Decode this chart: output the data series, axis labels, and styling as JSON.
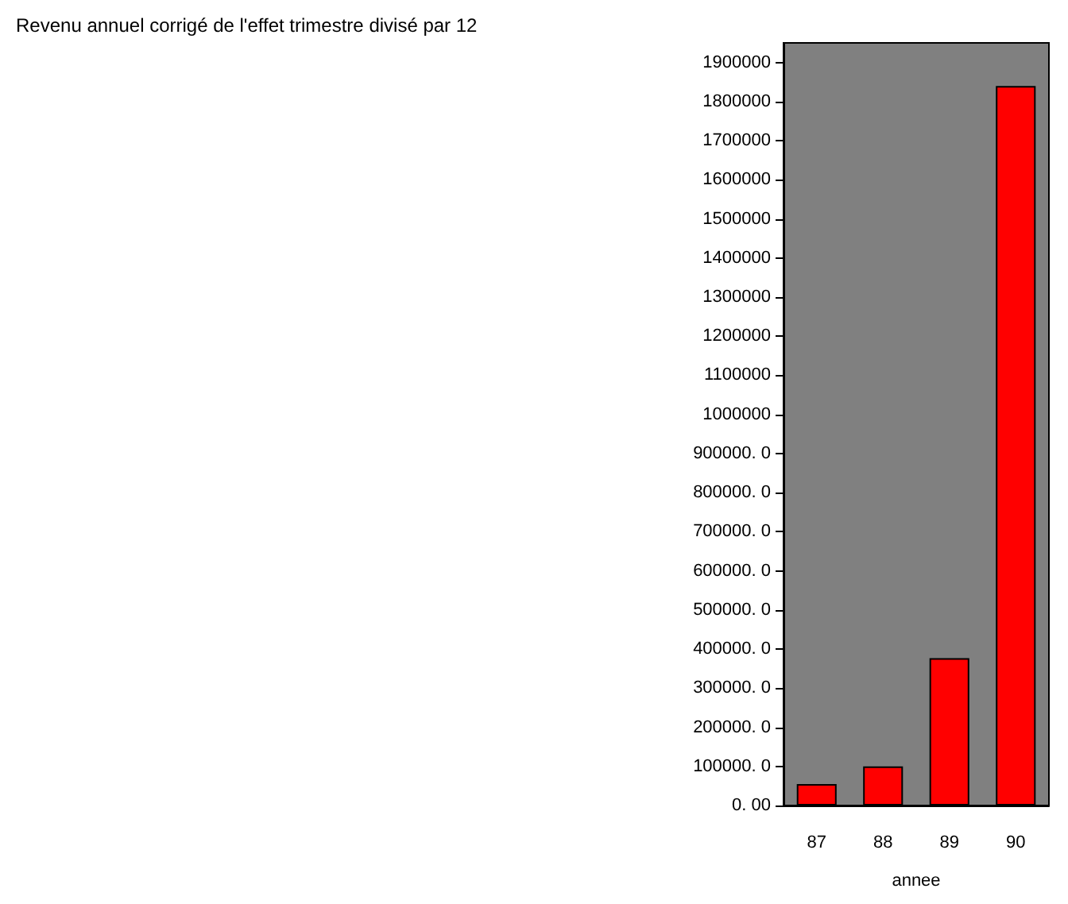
{
  "chart_data": {
    "type": "bar",
    "title": "Revenu annuel corrigé de l'effet trimestre divisé par 12",
    "xlabel": "annee",
    "categories": [
      "87",
      "88",
      "89",
      "90"
    ],
    "values": [
      55000,
      100000,
      377000,
      1840000
    ],
    "color": "#ff0000",
    "ylim": [
      0,
      1950000
    ],
    "yticks": [
      {
        "value": 0,
        "label": "0. 00"
      },
      {
        "value": 100000,
        "label": "100000. 0"
      },
      {
        "value": 200000,
        "label": "200000. 0"
      },
      {
        "value": 300000,
        "label": "300000. 0"
      },
      {
        "value": 400000,
        "label": "400000. 0"
      },
      {
        "value": 500000,
        "label": "500000. 0"
      },
      {
        "value": 600000,
        "label": "600000. 0"
      },
      {
        "value": 700000,
        "label": "700000. 0"
      },
      {
        "value": 800000,
        "label": "800000. 0"
      },
      {
        "value": 900000,
        "label": "900000. 0"
      },
      1000000,
      1100000,
      1200000,
      1300000,
      1400000,
      1500000,
      1600000,
      1700000,
      1800000,
      1900000
    ],
    "grid": false
  }
}
